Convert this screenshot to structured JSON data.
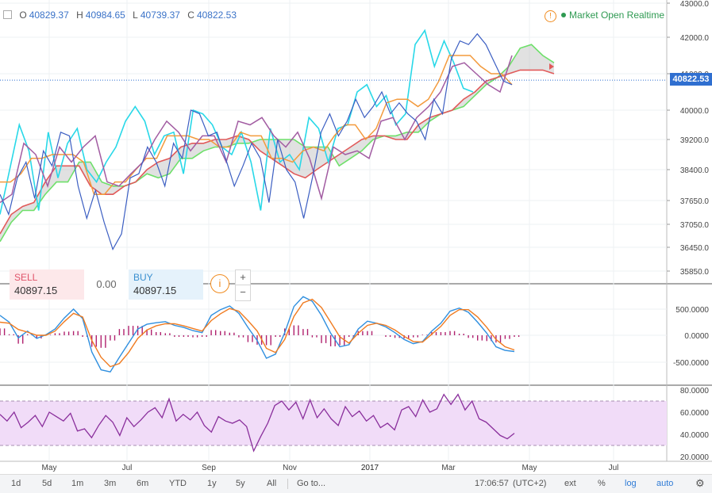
{
  "header": {
    "ohlc": [
      {
        "key": "O",
        "value": "40829.37"
      },
      {
        "key": "H",
        "value": "40984.65"
      },
      {
        "key": "L",
        "value": "40739.37"
      },
      {
        "key": "C",
        "value": "40822.53"
      }
    ],
    "status_text": "Market Open Realtime"
  },
  "trade": {
    "sell_label": "SELL",
    "sell_price": "40897.15",
    "spread": "0.00",
    "buy_label": "BUY",
    "buy_price": "40897.15",
    "info_glyph": "i",
    "zoom_in": "+",
    "zoom_out": "−"
  },
  "last_price": "40822.53",
  "toolbar": {
    "ranges": [
      "1d",
      "5d",
      "1m",
      "3m",
      "6m",
      "YTD",
      "1y",
      "5y",
      "All"
    ],
    "goto": "Go to...",
    "time": "17:06:57",
    "tz": "(UTC+2)",
    "options": [
      "ext",
      "%",
      "log",
      "auto"
    ]
  },
  "colors": {
    "price": "#3b5ec2",
    "tenkan": "#28d8e8",
    "kijun": "#f39a3c",
    "chikou": "#a25ca2",
    "span_a": "#6ee06a",
    "span_b": "#e15a5a",
    "macd": "#2f8fdf",
    "signal": "#f07b20",
    "histogram": "#b0226e",
    "rsi": "#8a2f9c",
    "rsi_band": "#f1dcf8",
    "price_tag": "#2f6fd0"
  },
  "chart_data": [
    {
      "type": "line",
      "panel": "price",
      "indicator": "Ichimoku Cloud",
      "x_ticks": [
        "May",
        "Jul",
        "Sep",
        "Nov",
        "2017",
        "Mar",
        "May",
        "Jul"
      ],
      "y_ticks": [
        43000,
        42000,
        41000,
        40000,
        39200,
        38400,
        37650,
        37050,
        36450,
        35850
      ],
      "ylim": [
        35850,
        43000
      ],
      "series": [
        {
          "values": [
            37800,
            37300,
            38200,
            38600,
            37700,
            38900,
            38500,
            39400,
            39300,
            38000,
            37200,
            37900,
            37100,
            36400,
            36800,
            38200,
            38300,
            39000,
            38600,
            38000,
            39100,
            38700,
            40000,
            39900,
            39300,
            39400,
            38700,
            38000,
            38500,
            39100,
            38700,
            37600,
            39200,
            38400,
            38100,
            37200,
            38200,
            39400,
            39900,
            39300,
            39700,
            40300,
            39800,
            40100,
            40500,
            39900,
            40200,
            39900,
            39700,
            39200,
            40300,
            39900,
            41400,
            41900,
            41800,
            42100,
            41800,
            41300,
            40800,
            40700
          ]
        },
        {
          "values": [
            37300,
            38400,
            39600,
            38900,
            37400,
            39400,
            38200,
            39100,
            39500,
            38400,
            38100,
            38600,
            39000,
            39700,
            40100,
            39700,
            38800,
            39300,
            39400,
            38300,
            40000,
            39900,
            39600,
            39000,
            38800,
            39400,
            38600,
            37400,
            39500,
            38600,
            38800,
            38400,
            39800,
            39500,
            38600,
            39500,
            39600,
            40500,
            40700,
            40100,
            40400,
            39600,
            39900,
            41800,
            42200,
            41200,
            41900,
            41300,
            40600,
            40500
          ]
        },
        {
          "values": [
            38100,
            38100,
            38300,
            38700,
            38700,
            38800,
            38800,
            38800,
            38600,
            37800,
            37800,
            38100,
            38100,
            38400,
            38700,
            38700,
            39300,
            39300,
            39300,
            39200,
            39200,
            39000,
            39000,
            39400,
            39300,
            39300,
            38700,
            38700,
            38600,
            38900,
            39000,
            38900,
            39300,
            39600,
            39600,
            39200,
            39500,
            40200,
            40300,
            40300,
            40100,
            40300,
            40800,
            41500,
            41500,
            41500,
            41200,
            41000,
            41000,
            40700
          ]
        },
        {
          "values": [
            37600,
            37800,
            39100,
            38800,
            38000,
            39000,
            38600,
            39000,
            39300,
            38100,
            38000,
            38300,
            38600,
            39200,
            39700,
            39400,
            38900,
            39300,
            39300,
            38600,
            39700,
            39600,
            39800,
            39300,
            39000,
            39400,
            38700,
            37700,
            39000,
            38800,
            38900,
            38700,
            39700,
            39800,
            39200,
            39800,
            40100,
            40500,
            41200,
            41300,
            41000,
            40700,
            40500,
            41500
          ]
        },
        {
          "values": [
            36600,
            37100,
            37400,
            37400,
            37800,
            38100,
            38100,
            38600,
            38600,
            38100,
            38000,
            38000,
            38100,
            38300,
            38200,
            38300,
            38700,
            38700,
            38900,
            39000,
            39000,
            39100,
            39100,
            39200,
            39200,
            39200,
            39200,
            39000,
            39000,
            39000,
            38500,
            38700,
            38900,
            39200,
            39300,
            39300,
            39400,
            39400,
            39700,
            39900,
            40000,
            40100,
            40400,
            40700,
            40900,
            41200,
            41700,
            41800,
            41500,
            41300
          ]
        },
        {
          "values": [
            36800,
            37300,
            37500,
            37600,
            38100,
            38500,
            38500,
            38500,
            38000,
            37800,
            37800,
            38000,
            38100,
            38400,
            38600,
            38700,
            39000,
            39100,
            39100,
            39200,
            39200,
            39300,
            39200,
            38900,
            38700,
            38500,
            38300,
            38200,
            38400,
            38600,
            38800,
            39000,
            39200,
            39300,
            39300,
            39200,
            39200,
            39600,
            39800,
            39900,
            40000,
            40300,
            40500,
            40800,
            40900,
            41000,
            41100,
            41100,
            41100,
            41000
          ]
        }
      ]
    },
    {
      "type": "bar",
      "panel": "macd",
      "y_ticks": [
        500,
        0,
        -500
      ],
      "ylim": [
        -800,
        850
      ],
      "series": [
        {
          "values": [
            380,
            250,
            -50,
            80,
            -60,
            10,
            120,
            330,
            500,
            320,
            -320,
            -660,
            -700,
            -420,
            -150,
            120,
            210,
            240,
            260,
            190,
            150,
            90,
            50,
            380,
            490,
            560,
            420,
            150,
            -100,
            -440,
            -360,
            50,
            550,
            740,
            650,
            380,
            40,
            -220,
            -180,
            120,
            270,
            230,
            160,
            50,
            -80,
            -160,
            -120,
            80,
            230,
            460,
            520,
            440,
            250,
            40,
            -220,
            -290,
            -310
          ]
        },
        {
          "values": [
            250,
            230,
            110,
            60,
            0,
            0,
            80,
            260,
            420,
            350,
            -100,
            -420,
            -600,
            -540,
            -330,
            -60,
            100,
            180,
            220,
            220,
            180,
            130,
            80,
            280,
            410,
            510,
            460,
            280,
            80,
            -250,
            -330,
            -80,
            360,
            620,
            690,
            530,
            250,
            -30,
            -150,
            40,
            190,
            230,
            190,
            100,
            -20,
            -120,
            -130,
            20,
            170,
            380,
            490,
            490,
            350,
            150,
            -80,
            -220,
            -280
          ]
        },
        {
          "values": [
            130,
            20,
            -160,
            20,
            -60,
            10,
            40,
            70,
            80,
            -30,
            -220,
            -240,
            -100,
            120,
            180,
            180,
            110,
            60,
            40,
            -30,
            -30,
            -40,
            -30,
            100,
            80,
            50,
            -40,
            -130,
            -180,
            -190,
            -30,
            130,
            190,
            120,
            -40,
            -150,
            -210,
            -190,
            -30,
            80,
            80,
            0,
            -30,
            -50,
            -60,
            -40,
            10,
            60,
            60,
            80,
            30,
            -50,
            -100,
            -110,
            -140,
            -70,
            -30
          ]
        }
      ]
    },
    {
      "type": "line",
      "panel": "rsi",
      "y_ticks": [
        80,
        60,
        40,
        20
      ],
      "band": [
        30,
        70
      ],
      "ylim": [
        18,
        82
      ],
      "series": [
        {
          "values": [
            58,
            52,
            60,
            46,
            51,
            57,
            47,
            60,
            56,
            52,
            59,
            43,
            45,
            37,
            48,
            57,
            51,
            39,
            55,
            47,
            53,
            60,
            64,
            55,
            72,
            52,
            58,
            53,
            60,
            48,
            42,
            56,
            52,
            50,
            53,
            47,
            25,
            38,
            50,
            66,
            70,
            62,
            69,
            54,
            71,
            55,
            63,
            54,
            48,
            65,
            56,
            61,
            52,
            57,
            46,
            50,
            44,
            62,
            65,
            56,
            71,
            60,
            63,
            76,
            67,
            76,
            62,
            70,
            54,
            51,
            45,
            39,
            36,
            41
          ]
        }
      ]
    }
  ]
}
